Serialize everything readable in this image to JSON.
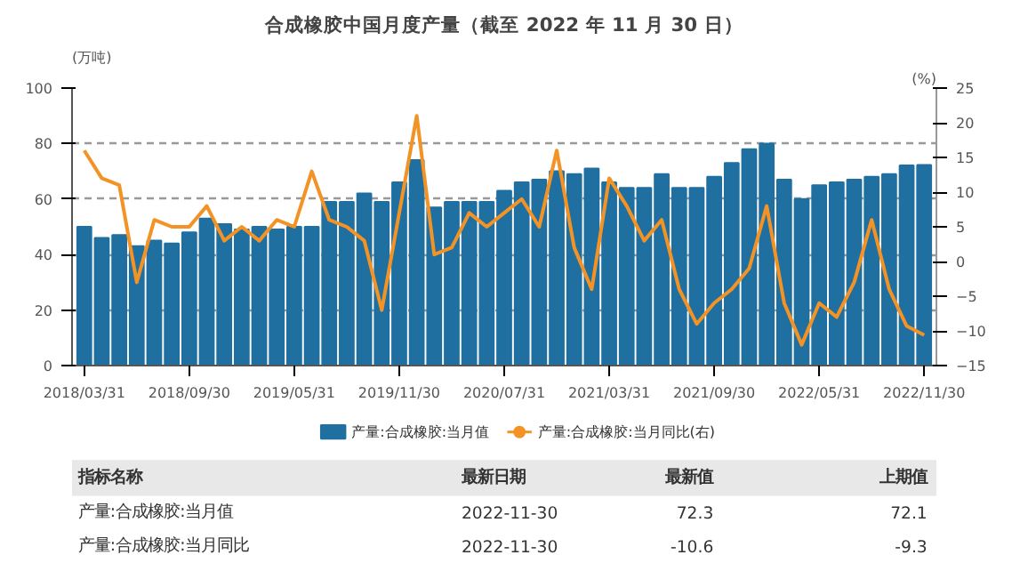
{
  "chart_data": {
    "type": "bar",
    "title": "合成橡胶中国月度产量（截至 2022 年 11 月 30 日）",
    "ylabel": "(万吨)",
    "y2label": "(%)",
    "categories": [
      "2018/03/31",
      null,
      null,
      null,
      null,
      null,
      "2018/09/30",
      null,
      null,
      null,
      null,
      null,
      "2019/05/31",
      null,
      null,
      null,
      null,
      null,
      "2019/11/30",
      null,
      null,
      null,
      null,
      null,
      "2020/07/31",
      null,
      null,
      null,
      null,
      null,
      "2021/03/31",
      null,
      null,
      null,
      null,
      null,
      "2021/09/30",
      null,
      null,
      null,
      null,
      null,
      "2022/05/31",
      null,
      null,
      null,
      null,
      null,
      "2022/11/30"
    ],
    "series": [
      {
        "name": "产量:合成橡胶:当月值",
        "color": "#1f6fa0",
        "values": [
          50,
          46,
          47,
          43,
          45,
          44,
          48,
          53,
          51,
          49,
          50,
          49,
          50,
          50,
          59,
          59,
          62,
          59,
          66,
          74,
          57,
          59,
          59,
          59,
          63,
          66,
          67,
          70,
          69,
          71,
          66,
          64,
          64,
          69,
          64,
          64,
          68,
          73,
          78,
          80,
          67,
          60,
          65,
          66,
          67,
          68,
          69,
          72.1,
          72.3
        ]
      },
      {
        "name": "产量:合成橡胶:当月同比(右)",
        "type": "line",
        "axis": "y2",
        "color": "#f39325",
        "values": [
          16,
          12,
          11,
          -3,
          6,
          5,
          5,
          8,
          3,
          5,
          3,
          6,
          5,
          13,
          6,
          5,
          3,
          -7,
          7,
          21,
          1,
          2,
          7,
          5,
          7,
          9,
          5,
          16,
          2,
          -4,
          12,
          8,
          3,
          6,
          -4,
          -9,
          -6,
          -4,
          -1,
          8,
          -6,
          -12,
          -6,
          -8,
          -3,
          6,
          -4,
          -9.3,
          -10.6
        ]
      }
    ],
    "ylim": [
      0,
      100
    ],
    "yticks": [
      0,
      20,
      40,
      60,
      80,
      100
    ],
    "y2lim": [
      -15,
      25
    ],
    "y2ticks": [
      -15,
      -10,
      -5,
      0,
      5,
      10,
      15,
      20,
      25
    ],
    "grid": "y",
    "legend": "bottom",
    "annotations": [
      "指标名称",
      "最新日期",
      "最新值",
      "上期值",
      "产量:合成橡胶:当月值",
      "2022-11-30",
      "72.3",
      "72.1",
      "产量:合成橡胶:当月同比",
      "2022-11-30",
      "-10.6",
      "-9.3"
    ]
  }
}
